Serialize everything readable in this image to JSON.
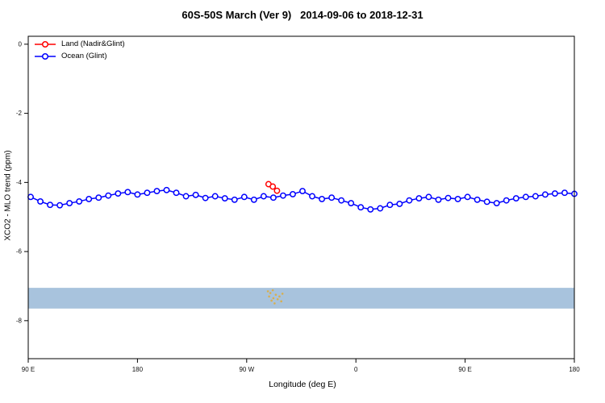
{
  "chart_data": {
    "type": "line",
    "title": "60S-50S March (Ver 9)   2014-09-06 to 2018-12-31",
    "xlabel": "Longitude (deg E)",
    "ylabel": "XCO2 - MLO trend (ppm)",
    "xlim": [
      90,
      540
    ],
    "ylim": [
      -9.1,
      0.23
    ],
    "grid": false,
    "legend_position": "top-left",
    "x_ticks": [
      {
        "value": 90,
        "label": "90 E"
      },
      {
        "value": 180,
        "label": "180"
      },
      {
        "value": 270,
        "label": "90 W"
      },
      {
        "value": 360,
        "label": "0"
      },
      {
        "value": 450,
        "label": "90 E"
      },
      {
        "value": 540,
        "label": "180"
      }
    ],
    "y_ticks": [
      {
        "value": 0,
        "label": "0"
      },
      {
        "value": -2,
        "label": "-2"
      },
      {
        "value": -4,
        "label": "-4"
      },
      {
        "value": -6,
        "label": "-6"
      },
      {
        "value": -8,
        "label": "-8"
      }
    ],
    "band": {
      "name": "latitude-highlight-band",
      "y_top": -7.05,
      "y_bottom": -7.65,
      "color": "#a8c3dd"
    },
    "footprints": {
      "name": "sounding-footprint-dots",
      "color": "#e8a820",
      "points": [
        [
          287.5,
          -7.15
        ],
        [
          288.5,
          -7.3
        ],
        [
          289.5,
          -7.2
        ],
        [
          290.5,
          -7.42
        ],
        [
          291.5,
          -7.12
        ],
        [
          292.0,
          -7.35
        ],
        [
          293.0,
          -7.5
        ],
        [
          294.0,
          -7.25
        ],
        [
          295.5,
          -7.38
        ],
        [
          297.0,
          -7.3
        ],
        [
          298.5,
          -7.44
        ],
        [
          299.5,
          -7.22
        ]
      ]
    },
    "series": [
      {
        "name": "Land (Nadir&Glint)",
        "color": "#ff0000",
        "x": [
          288,
          291.5,
          295
        ],
        "y": [
          -4.05,
          -4.12,
          -4.24
        ]
      },
      {
        "name": "Ocean (Glint)",
        "color": "#0000ff",
        "x": [
          92,
          100,
          108,
          116,
          124,
          132,
          140,
          148,
          156,
          164,
          172,
          180,
          188,
          196,
          204,
          212,
          220,
          228,
          236,
          244,
          252,
          260,
          268,
          276,
          284,
          292,
          300,
          308,
          316,
          324,
          332,
          340,
          348,
          356,
          364,
          372,
          380,
          388,
          396,
          404,
          412,
          420,
          428,
          436,
          444,
          452,
          460,
          468,
          476,
          484,
          492,
          500,
          508,
          516,
          524,
          532,
          540
        ],
        "y": [
          -4.42,
          -4.55,
          -4.65,
          -4.66,
          -4.6,
          -4.55,
          -4.48,
          -4.44,
          -4.38,
          -4.32,
          -4.28,
          -4.35,
          -4.3,
          -4.25,
          -4.22,
          -4.3,
          -4.4,
          -4.36,
          -4.45,
          -4.4,
          -4.46,
          -4.5,
          -4.42,
          -4.5,
          -4.4,
          -4.44,
          -4.38,
          -4.34,
          -4.25,
          -4.4,
          -4.48,
          -4.44,
          -4.52,
          -4.6,
          -4.72,
          -4.78,
          -4.75,
          -4.65,
          -4.62,
          -4.52,
          -4.46,
          -4.42,
          -4.5,
          -4.45,
          -4.48,
          -4.42,
          -4.5,
          -4.56,
          -4.6,
          -4.52,
          -4.46,
          -4.42,
          -4.4,
          -4.35,
          -4.32,
          -4.3,
          -4.33
        ]
      }
    ]
  }
}
